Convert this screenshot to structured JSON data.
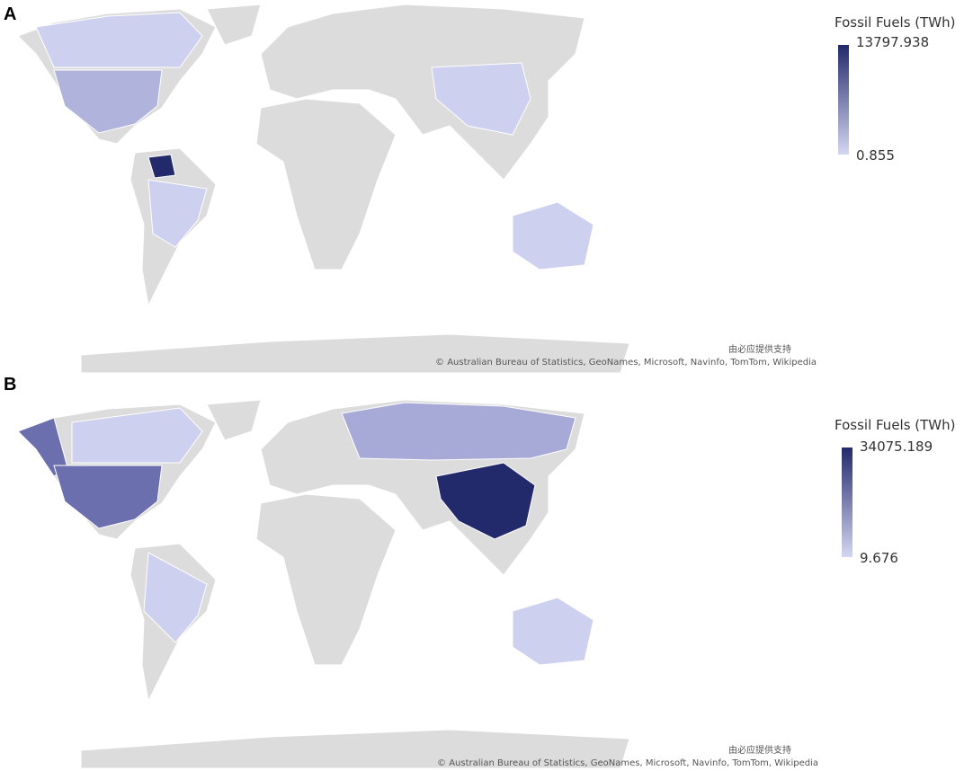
{
  "panels": [
    {
      "label": "A",
      "legend": {
        "title": "Fossil Fuels (TWh)",
        "max": 13797.938,
        "min": 0.855
      },
      "attribution": {
        "provider": "由必应提供支持",
        "sources": "© Australian Bureau of Statistics, GeoNames, Microsoft, Navinfo, TomTom, Wikipedia"
      }
    },
    {
      "label": "B",
      "legend": {
        "title": "Fossil Fuels (TWh)",
        "max": 34075.189,
        "min": 9.676
      },
      "attribution": {
        "provider": "由必应提供支持",
        "sources": "© Australian Bureau of Statistics, GeoNames, Microsoft, Navinfo, TomTom, Wikipedia"
      }
    }
  ]
}
